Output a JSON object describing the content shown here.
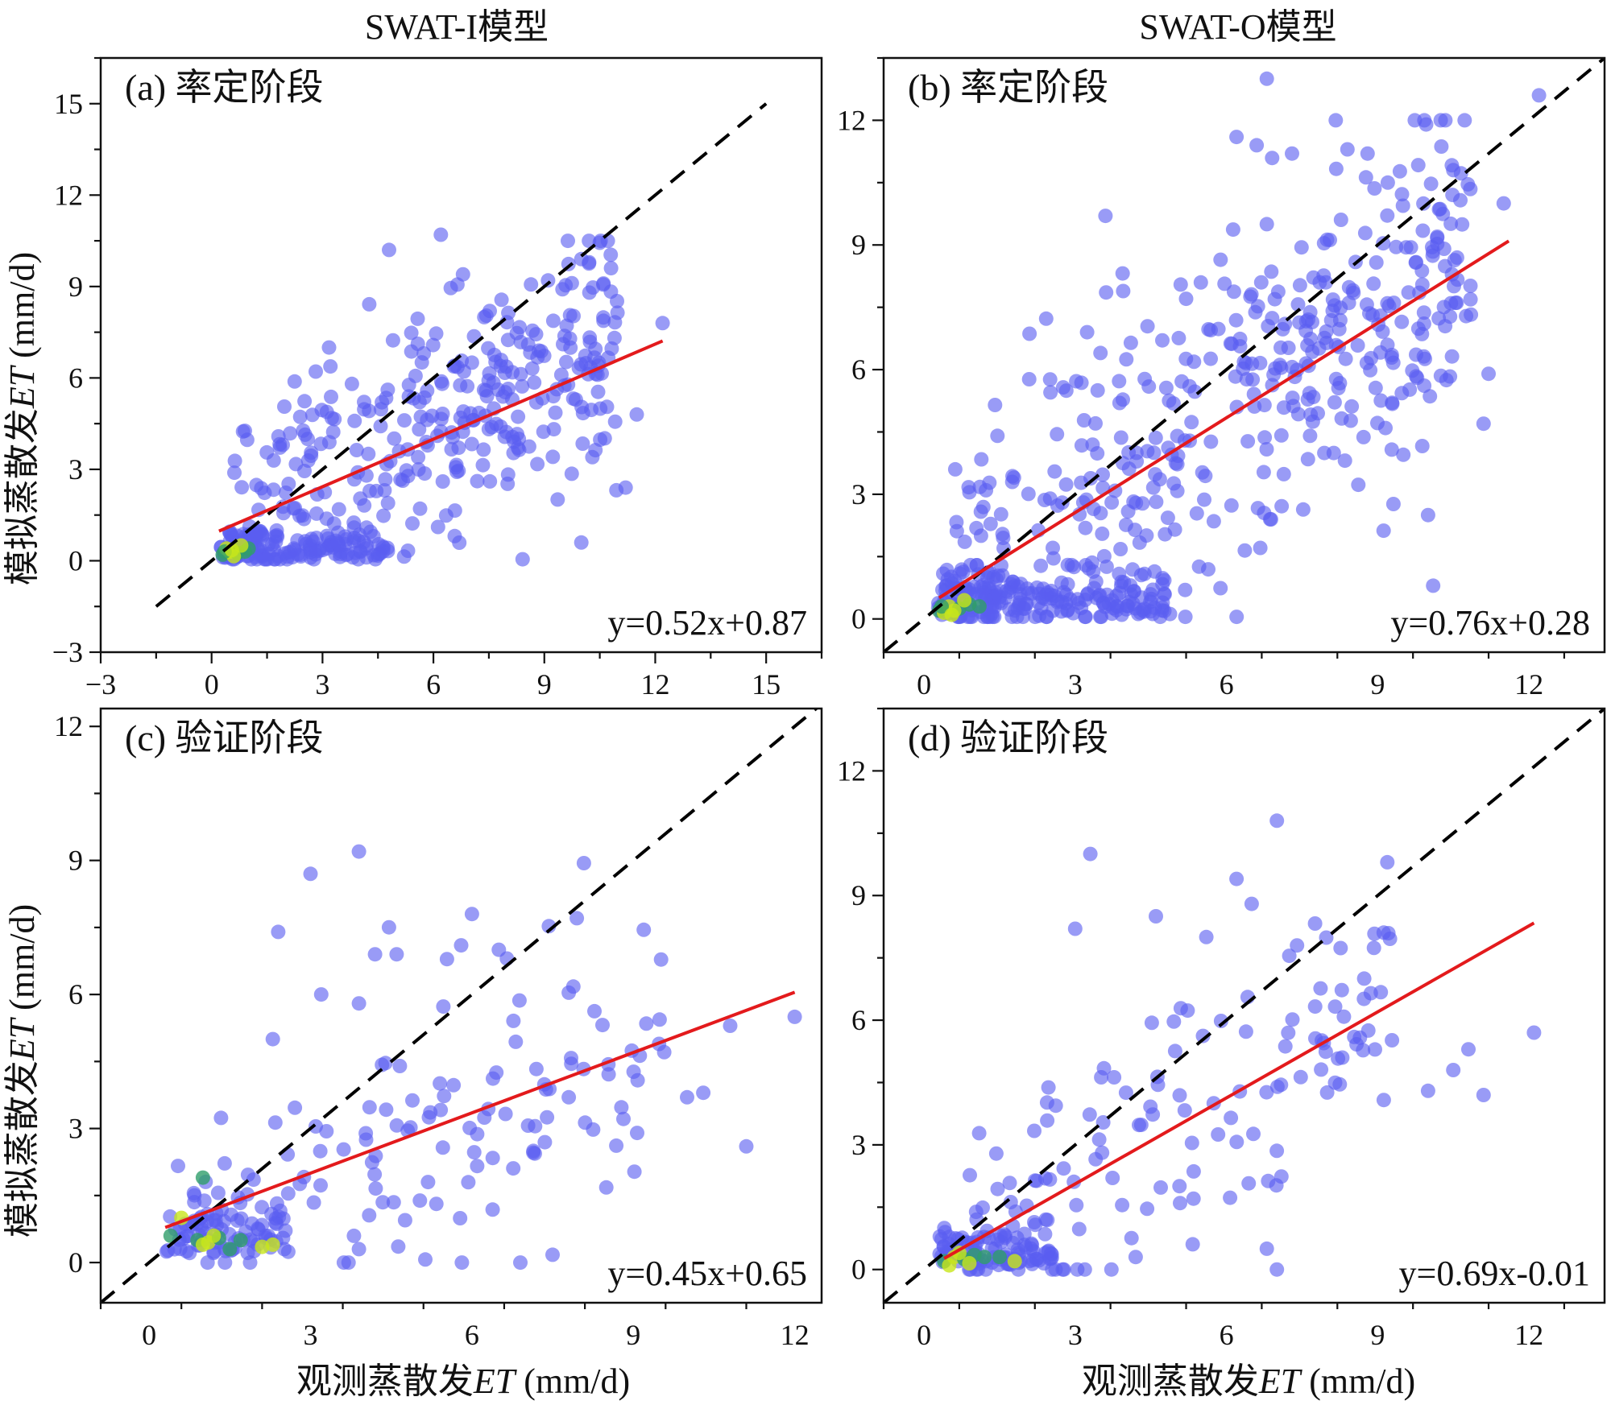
{
  "figure": {
    "column_titles": [
      "SWAT-I模型",
      "SWAT-O模型"
    ],
    "x_axis_label_main": "观测蒸散发",
    "x_axis_label_italic": "ET",
    "x_axis_label_unit": " (mm/d)",
    "y_axis_label_main": "模拟蒸散发",
    "y_axis_label_italic": "ET",
    "y_axis_label_unit": " (mm/d)"
  },
  "colors": {
    "points_low_density": "#5b5ef0",
    "points_mid_density": "#2f9e6a",
    "points_high_density": "#c8e61a",
    "one_to_one_line": "#000000",
    "fit_line": "#e31a1c"
  },
  "chart_data": [
    {
      "id": "a",
      "type": "scatter",
      "panel_label": "(a) 率定阶段",
      "equation": "y=0.52x+0.87",
      "slope": 0.52,
      "intercept": 0.87,
      "fit_x_range": [
        0.2,
        12.2
      ],
      "one_to_one_range": [
        -1.5,
        15
      ],
      "xlim": [
        -3,
        16.5
      ],
      "ylim": [
        -3,
        16.5
      ],
      "xticks": [
        -3,
        0,
        3,
        6,
        9,
        12,
        15
      ],
      "yticks": [
        -3,
        0,
        3,
        6,
        9,
        12,
        15
      ],
      "highlight_points": [
        [
          10.0,
          9.9
        ],
        [
          4.8,
          10.2
        ],
        [
          6.2,
          10.7
        ],
        [
          6.8,
          9.4
        ],
        [
          9.1,
          9.2
        ],
        [
          10.6,
          9.1
        ],
        [
          12.2,
          7.8
        ],
        [
          11.5,
          4.8
        ],
        [
          11.2,
          2.4
        ],
        [
          10.0,
          0.6
        ],
        [
          10.3,
          3.4
        ],
        [
          3.5,
          0.3
        ]
      ],
      "dense_points": [
        [
          0.3,
          0.2
        ],
        [
          0.5,
          0.3
        ],
        [
          0.7,
          0.25
        ],
        [
          0.4,
          0.4
        ],
        [
          0.9,
          0.3
        ],
        [
          0.6,
          0.15
        ],
        [
          1.0,
          0.4
        ],
        [
          0.8,
          0.5
        ],
        [
          0.35,
          0.3
        ],
        [
          0.55,
          0.35
        ]
      ],
      "n_points": 480,
      "generator": "cal_I"
    },
    {
      "id": "b",
      "type": "scatter",
      "panel_label": "(b) 率定阶段",
      "equation": "y=0.76x+0.28",
      "slope": 0.76,
      "intercept": 0.28,
      "fit_x_range": [
        0.3,
        11.6
      ],
      "one_to_one_range": [
        -0.8,
        13.5
      ],
      "xlim": [
        -0.8,
        13.5
      ],
      "ylim": [
        -0.8,
        13.5
      ],
      "xticks": [
        0,
        3,
        6,
        9,
        12
      ],
      "yticks": [
        0,
        3,
        6,
        9,
        12
      ],
      "highlight_points": [
        [
          6.8,
          13.0
        ],
        [
          12.2,
          12.6
        ],
        [
          6.2,
          11.6
        ],
        [
          6.6,
          11.4
        ],
        [
          7.3,
          11.2
        ],
        [
          8.4,
          11.3
        ],
        [
          8.8,
          11.2
        ],
        [
          9.2,
          10.5
        ],
        [
          10.5,
          10.8
        ],
        [
          11.5,
          10.0
        ],
        [
          3.6,
          9.7
        ],
        [
          10.0,
          2.5
        ],
        [
          10.1,
          0.8
        ],
        [
          11.2,
          5.9
        ],
        [
          11.1,
          4.7
        ],
        [
          6.8,
          9.5
        ]
      ],
      "dense_points": [
        [
          0.3,
          0.2
        ],
        [
          0.5,
          0.3
        ],
        [
          0.7,
          0.25
        ],
        [
          0.4,
          0.15
        ],
        [
          0.9,
          0.35
        ],
        [
          0.6,
          0.2
        ],
        [
          1.1,
          0.3
        ],
        [
          0.8,
          0.45
        ],
        [
          0.35,
          0.3
        ],
        [
          0.55,
          0.1
        ]
      ],
      "n_points": 620,
      "generator": "cal_O"
    },
    {
      "id": "c",
      "type": "scatter",
      "panel_label": "(c) 验证阶段",
      "equation": "y=0.45x+0.65",
      "slope": 0.45,
      "intercept": 0.65,
      "fit_x_range": [
        0.3,
        12.0
      ],
      "one_to_one_range": [
        -0.9,
        12.8
      ],
      "xlim": [
        -0.9,
        12.5
      ],
      "ylim": [
        -0.9,
        12.4
      ],
      "xticks": [
        0,
        3,
        6,
        9,
        12
      ],
      "yticks": [
        0,
        3,
        6,
        9,
        12
      ],
      "highlight_points": [
        [
          3.9,
          9.2
        ],
        [
          3.0,
          8.7
        ],
        [
          2.4,
          7.4
        ],
        [
          6.0,
          7.8
        ],
        [
          5.8,
          7.1
        ],
        [
          4.6,
          6.9
        ],
        [
          4.2,
          6.9
        ],
        [
          6.5,
          7.0
        ],
        [
          3.2,
          6.0
        ],
        [
          3.9,
          5.8
        ],
        [
          2.3,
          5.0
        ],
        [
          10.8,
          5.3
        ],
        [
          12.0,
          5.5
        ],
        [
          11.1,
          2.6
        ],
        [
          10.3,
          3.8
        ],
        [
          10.0,
          3.7
        ],
        [
          7.8,
          3.7
        ],
        [
          6.9,
          0.0
        ],
        [
          3.9,
          0.3
        ]
      ],
      "dense_points": [
        [
          0.9,
          0.5
        ],
        [
          1.1,
          0.45
        ],
        [
          1.3,
          0.55
        ],
        [
          1.0,
          0.4
        ],
        [
          1.7,
          0.5
        ],
        [
          2.1,
          0.35
        ],
        [
          1.5,
          0.3
        ],
        [
          0.6,
          1.0
        ],
        [
          1.0,
          1.9
        ],
        [
          1.2,
          0.6
        ],
        [
          0.4,
          0.6
        ],
        [
          2.3,
          0.4
        ]
      ],
      "n_points": 210,
      "generator": "val_I"
    },
    {
      "id": "d",
      "type": "scatter",
      "panel_label": "(d) 验证阶段",
      "equation": "y=0.69x-0.01",
      "slope": 0.69,
      "intercept": -0.01,
      "fit_x_range": [
        0.4,
        12.1
      ],
      "one_to_one_range": [
        -0.8,
        13.5
      ],
      "xlim": [
        -0.8,
        13.5
      ],
      "ylim": [
        -0.8,
        13.5
      ],
      "xticks": [
        0,
        3,
        6,
        9,
        12
      ],
      "yticks": [
        0,
        3,
        6,
        9,
        12
      ],
      "highlight_points": [
        [
          7.0,
          10.8
        ],
        [
          3.3,
          10.0
        ],
        [
          6.2,
          9.4
        ],
        [
          6.5,
          8.8
        ],
        [
          4.6,
          8.5
        ],
        [
          3.0,
          8.2
        ],
        [
          5.6,
          8.0
        ],
        [
          7.4,
          7.8
        ],
        [
          12.1,
          5.7
        ],
        [
          11.1,
          4.2
        ],
        [
          10.8,
          5.3
        ],
        [
          10.5,
          4.8
        ],
        [
          10.0,
          4.3
        ],
        [
          7.0,
          0.0
        ],
        [
          6.8,
          0.5
        ],
        [
          4.2,
          0.3
        ]
      ],
      "dense_points": [
        [
          0.4,
          0.2
        ],
        [
          0.6,
          0.3
        ],
        [
          0.8,
          0.25
        ],
        [
          0.5,
          0.1
        ],
        [
          1.0,
          0.35
        ],
        [
          0.7,
          0.4
        ],
        [
          1.2,
          0.3
        ],
        [
          0.9,
          0.15
        ],
        [
          1.5,
          0.3
        ],
        [
          1.8,
          0.2
        ]
      ],
      "n_points": 230,
      "generator": "val_O"
    }
  ]
}
